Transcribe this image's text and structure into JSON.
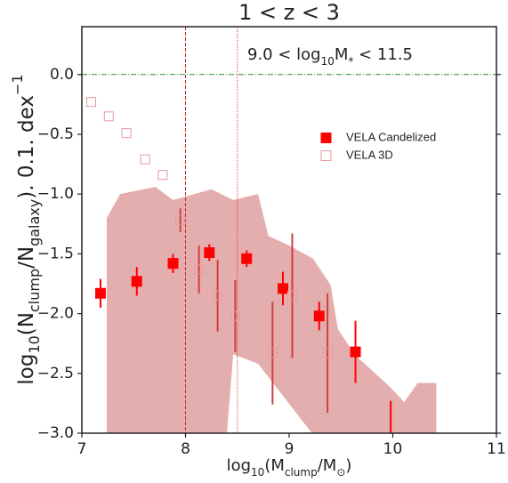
{
  "chart_data": {
    "type": "scatter",
    "title": "1 < z < 3",
    "annotation": [
      "9.0 < log",
      "10",
      "M",
      "*",
      " < 11.5"
    ],
    "xlabel": [
      "log",
      "10",
      "(M",
      "clump",
      "/M",
      "⊙",
      ")"
    ],
    "ylabel": [
      "log",
      "10",
      "(N",
      "clump",
      "/N",
      "galaxy",
      "). 0.1. dex",
      "−1"
    ],
    "xlim": [
      7,
      11
    ],
    "ylim": [
      -3,
      0.4
    ],
    "xticks": [
      7,
      8,
      9,
      10,
      11
    ],
    "yticks": [
      {
        "value": -3,
        "label": "−3.0"
      },
      {
        "value": -2.5,
        "label": "−2.5"
      },
      {
        "value": -2,
        "label": "−2.0"
      },
      {
        "value": -1.5,
        "label": "−1.5"
      },
      {
        "value": -1,
        "label": "−1.0"
      },
      {
        "value": -0.5,
        "label": "−0.5"
      },
      {
        "value": 0,
        "label": "0.0"
      }
    ],
    "hline": {
      "y": 0,
      "color": "#2e8b2e"
    },
    "vlines": [
      {
        "x": 8.0,
        "color": "#d62020",
        "style": "dashed"
      },
      {
        "x": 8.5,
        "color": "#d62020",
        "style": "dotted"
      }
    ],
    "band": {
      "color": "#e5aeae",
      "x": [
        7.24,
        7.37,
        7.71,
        7.88,
        8.25,
        8.46,
        8.7,
        8.8,
        9.0,
        9.23,
        9.4,
        9.47,
        9.64,
        9.97,
        10.11,
        10.24,
        10.42,
        10.42,
        9.71,
        9.22,
        8.7,
        8.46,
        8.4,
        7.24
      ],
      "y": [
        -1.2,
        -1.0,
        -0.94,
        -1.05,
        -0.96,
        -1.05,
        -1.0,
        -1.35,
        -1.43,
        -1.54,
        -1.76,
        -2.13,
        -2.35,
        -2.61,
        -2.74,
        -2.58,
        -2.58,
        -3.0,
        -3.0,
        -3.0,
        -2.42,
        -2.34,
        -3.0,
        -3.0
      ]
    },
    "legend": "upper right",
    "series": [
      {
        "name": "VELA Candelized",
        "color": "#ff0000",
        "filled": true,
        "error_color": "#ff0000",
        "x": [
          7.18,
          7.53,
          7.88,
          8.23,
          8.59,
          8.94,
          9.29,
          9.64,
          9.98
        ],
        "values": [
          -1.83,
          -1.73,
          -1.58,
          -1.49,
          -1.54,
          -1.79,
          -2.02,
          -2.32,
          -3.1
        ],
        "errors": [
          0.12,
          0.12,
          0.08,
          0.07,
          0.07,
          0.14,
          0.12,
          0.26,
          0.37
        ]
      },
      {
        "name": "VELA 3D",
        "color": "#e79a9a",
        "filled": false,
        "error_color": "#cf3e3e",
        "x": [
          7.09,
          7.26,
          7.43,
          7.61,
          7.78,
          7.95,
          8.13,
          8.31,
          8.48,
          8.84,
          9.03,
          9.37
        ],
        "values": [
          -0.23,
          -0.35,
          -0.49,
          -0.71,
          -0.84,
          -1.22,
          -1.63,
          -1.85,
          -2.02,
          -2.33,
          -1.85,
          -2.33
        ],
        "errors": [
          0,
          0,
          0,
          0,
          0,
          0.1,
          0.2,
          0.3,
          0.3,
          0.43,
          0.52,
          0.5
        ]
      }
    ]
  }
}
